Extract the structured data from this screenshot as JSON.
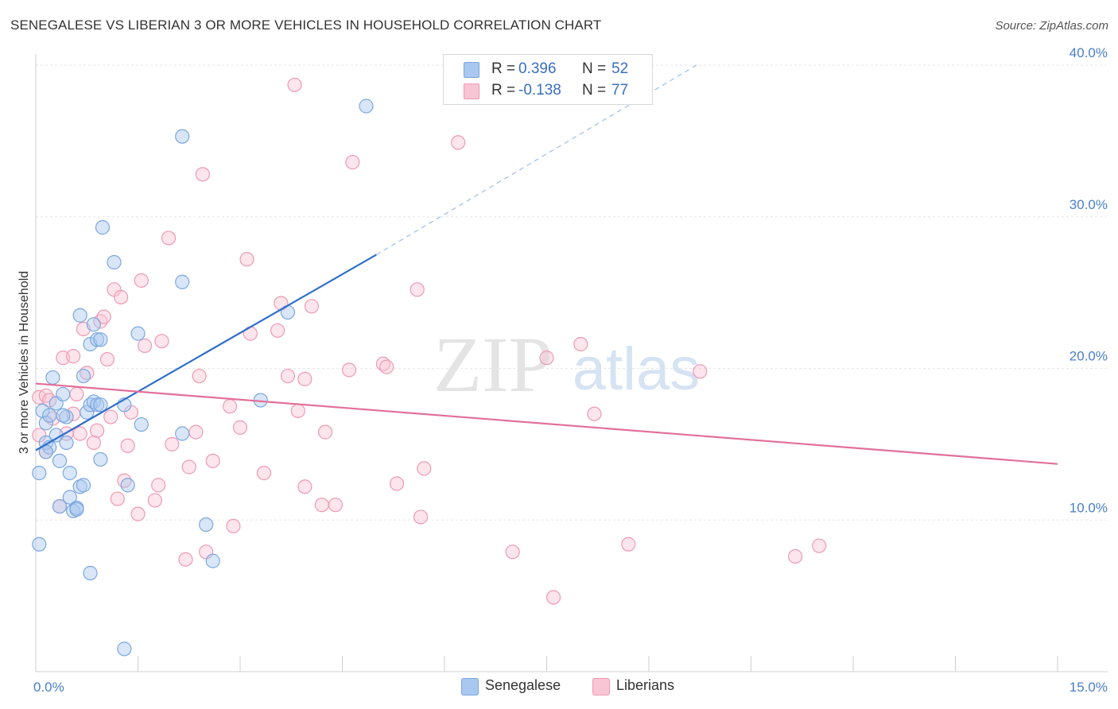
{
  "title": "SENEGALESE VS LIBERIAN 3 OR MORE VEHICLES IN HOUSEHOLD CORRELATION CHART",
  "source": "Source: ZipAtlas.com",
  "watermark": {
    "zip": "ZIP",
    "atlas": "atlas"
  },
  "legend": {
    "rows": [
      {
        "r_label": "R =",
        "r_value": "0.396",
        "n_label": "N =",
        "n_value": "52",
        "color": "#a9c8f0",
        "border": "#7ba7e0"
      },
      {
        "r_label": "R =",
        "r_value": "-0.138",
        "n_label": "N =",
        "n_value": "77",
        "color": "#f8c5d4",
        "border": "#ee9ab3"
      }
    ]
  },
  "bottom_legend": [
    {
      "label": "Senegalese",
      "color": "#a9c8f0",
      "border": "#7ba7e0"
    },
    {
      "label": "Liberians",
      "color": "#f8c5d4",
      "border": "#ee9ab3"
    }
  ],
  "chart_data": {
    "type": "scatter",
    "title": "SENEGALESE VS LIBERIAN 3 OR MORE VEHICLES IN HOUSEHOLD CORRELATION CHART",
    "xlabel": "",
    "ylabel": "3 or more Vehicles in Household",
    "xlim": [
      0,
      15
    ],
    "ylim": [
      0,
      40
    ],
    "x_tick_labels": [
      "0.0%",
      "15.0%"
    ],
    "y_ticks": [
      10,
      20,
      30,
      40
    ],
    "y_tick_labels": [
      "10.0%",
      "20.0%",
      "30.0%",
      "40.0%"
    ],
    "grid": true,
    "colors": {
      "senegalese": "#7ba7e0",
      "senegalese_line": "#2f6fcc",
      "liberians": "#ee9ab3",
      "liberians_line": "#e2709a"
    },
    "series": [
      {
        "name": "Senegalese",
        "trend": {
          "x": [
            0.0,
            5.0
          ],
          "y": [
            14.6,
            27.5
          ],
          "dashed_extension_to": [
            9.7,
            40.0
          ]
        },
        "points": [
          [
            0.05,
            13.1
          ],
          [
            0.05,
            8.4
          ],
          [
            0.1,
            17.2
          ],
          [
            0.15,
            15.1
          ],
          [
            0.15,
            16.4
          ],
          [
            0.2,
            16.9
          ],
          [
            0.2,
            14.8
          ],
          [
            0.25,
            19.4
          ],
          [
            0.3,
            17.7
          ],
          [
            0.3,
            15.6
          ],
          [
            0.35,
            13.9
          ],
          [
            0.35,
            10.9
          ],
          [
            0.4,
            18.3
          ],
          [
            0.45,
            16.8
          ],
          [
            0.45,
            15.1
          ],
          [
            0.5,
            13.1
          ],
          [
            0.5,
            11.5
          ],
          [
            0.55,
            10.6
          ],
          [
            0.6,
            10.8
          ],
          [
            0.65,
            23.5
          ],
          [
            0.65,
            12.2
          ],
          [
            0.7,
            12.3
          ],
          [
            0.7,
            19.5
          ],
          [
            0.75,
            17.1
          ],
          [
            0.8,
            21.6
          ],
          [
            0.8,
            17.6
          ],
          [
            0.85,
            17.8
          ],
          [
            0.9,
            17.6
          ],
          [
            0.9,
            21.9
          ],
          [
            0.95,
            21.9
          ],
          [
            0.95,
            17.6
          ],
          [
            0.8,
            6.5
          ],
          [
            0.95,
            14.0
          ],
          [
            0.85,
            22.9
          ],
          [
            0.98,
            29.3
          ],
          [
            1.15,
            27.0
          ],
          [
            1.3,
            17.6
          ],
          [
            1.35,
            12.3
          ],
          [
            1.5,
            22.3
          ],
          [
            1.55,
            16.3
          ],
          [
            1.3,
            1.5
          ],
          [
            2.15,
            25.7
          ],
          [
            2.15,
            15.7
          ],
          [
            2.15,
            35.3
          ],
          [
            2.5,
            9.7
          ],
          [
            2.6,
            7.3
          ],
          [
            3.3,
            17.9
          ],
          [
            3.7,
            23.7
          ],
          [
            4.85,
            37.3
          ],
          [
            0.4,
            16.9
          ],
          [
            0.15,
            14.5
          ],
          [
            0.6,
            10.7
          ]
        ]
      },
      {
        "name": "Liberians",
        "trend": {
          "x": [
            0.0,
            15.0
          ],
          "y": [
            19.0,
            13.7
          ]
        },
        "points": [
          [
            0.05,
            15.6
          ],
          [
            0.05,
            18.1
          ],
          [
            0.15,
            14.5
          ],
          [
            0.15,
            18.2
          ],
          [
            0.2,
            17.9
          ],
          [
            0.25,
            16.7
          ],
          [
            0.35,
            10.9
          ],
          [
            0.4,
            20.7
          ],
          [
            0.45,
            15.7
          ],
          [
            0.55,
            17.0
          ],
          [
            0.55,
            20.8
          ],
          [
            0.6,
            18.3
          ],
          [
            0.65,
            15.7
          ],
          [
            0.7,
            22.6
          ],
          [
            0.75,
            19.7
          ],
          [
            0.85,
            15.1
          ],
          [
            0.9,
            15.9
          ],
          [
            0.95,
            23.1
          ],
          [
            1.0,
            23.4
          ],
          [
            1.05,
            20.6
          ],
          [
            1.1,
            16.8
          ],
          [
            1.15,
            25.2
          ],
          [
            1.2,
            11.4
          ],
          [
            1.25,
            24.7
          ],
          [
            1.3,
            12.6
          ],
          [
            1.35,
            14.9
          ],
          [
            1.4,
            17.1
          ],
          [
            1.5,
            10.4
          ],
          [
            1.55,
            25.8
          ],
          [
            1.6,
            21.5
          ],
          [
            1.75,
            11.3
          ],
          [
            1.8,
            12.3
          ],
          [
            1.85,
            21.8
          ],
          [
            1.95,
            28.6
          ],
          [
            2.0,
            15.0
          ],
          [
            2.2,
            7.4
          ],
          [
            2.25,
            13.5
          ],
          [
            2.35,
            15.8
          ],
          [
            2.4,
            19.5
          ],
          [
            2.45,
            32.8
          ],
          [
            2.5,
            7.9
          ],
          [
            2.6,
            13.9
          ],
          [
            2.85,
            17.5
          ],
          [
            2.9,
            9.6
          ],
          [
            3.0,
            16.1
          ],
          [
            3.1,
            27.2
          ],
          [
            3.15,
            22.3
          ],
          [
            3.35,
            13.1
          ],
          [
            3.55,
            22.5
          ],
          [
            3.6,
            24.3
          ],
          [
            3.7,
            19.5
          ],
          [
            3.8,
            38.7
          ],
          [
            3.85,
            17.2
          ],
          [
            3.95,
            19.3
          ],
          [
            3.95,
            12.2
          ],
          [
            4.05,
            24.1
          ],
          [
            4.2,
            11.0
          ],
          [
            4.25,
            15.8
          ],
          [
            4.4,
            11.0
          ],
          [
            4.6,
            19.9
          ],
          [
            4.65,
            33.6
          ],
          [
            5.1,
            20.3
          ],
          [
            5.15,
            20.1
          ],
          [
            5.3,
            12.4
          ],
          [
            5.6,
            25.2
          ],
          [
            5.65,
            10.2
          ],
          [
            5.7,
            13.4
          ],
          [
            6.2,
            34.9
          ],
          [
            7.0,
            7.9
          ],
          [
            7.5,
            20.7
          ],
          [
            7.6,
            4.9
          ],
          [
            8.0,
            21.6
          ],
          [
            8.2,
            17.0
          ],
          [
            8.7,
            8.4
          ],
          [
            9.75,
            19.8
          ],
          [
            11.15,
            7.6
          ],
          [
            11.5,
            8.3
          ]
        ]
      }
    ]
  }
}
